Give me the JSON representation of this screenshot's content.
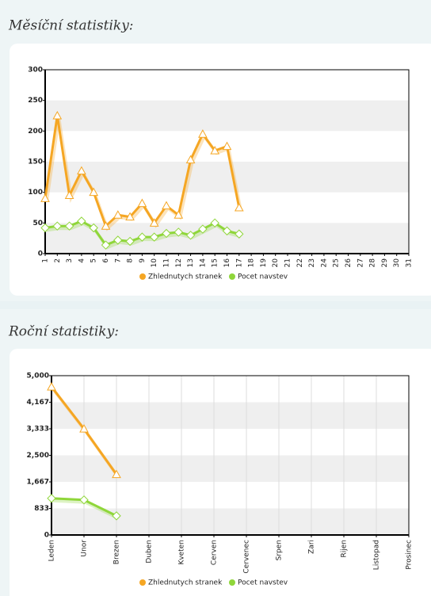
{
  "chart_data": [
    {
      "type": "line",
      "title": "Měsíční statistiky:",
      "categories": [
        "1",
        "2",
        "3",
        "4",
        "5",
        "6",
        "7",
        "8",
        "9",
        "10",
        "11",
        "12",
        "13",
        "14",
        "15",
        "16",
        "17",
        "18",
        "19",
        "20",
        "21",
        "22",
        "23",
        "24",
        "25",
        "26",
        "27",
        "28",
        "29",
        "30",
        "31"
      ],
      "series": [
        {
          "name": "Zhlednutych stranek",
          "color": "#f5a623",
          "values": [
            90,
            225,
            95,
            135,
            100,
            45,
            63,
            60,
            82,
            50,
            78,
            63,
            153,
            195,
            168,
            175,
            75,
            null,
            null,
            null,
            null,
            null,
            null,
            null,
            null,
            null,
            null,
            null,
            null,
            null,
            null
          ]
        },
        {
          "name": "Pocet navstev",
          "color": "#8fd63a",
          "values": [
            42,
            45,
            45,
            53,
            42,
            14,
            22,
            20,
            27,
            27,
            33,
            35,
            30,
            40,
            50,
            37,
            32,
            null,
            null,
            null,
            null,
            null,
            null,
            null,
            null,
            null,
            null,
            null,
            null,
            null,
            null
          ]
        }
      ],
      "ylim": [
        0,
        300
      ],
      "yticks": [
        0,
        50,
        100,
        150,
        200,
        250,
        300
      ],
      "grid": true,
      "xgrid": false,
      "legend": "bottom"
    },
    {
      "type": "line",
      "title": "Roční statistiky:",
      "categories": [
        "Leden",
        "Unor",
        "Brezen",
        "Duben",
        "Kveten",
        "Cerven",
        "Cervenec",
        "Srpen",
        "Zari",
        "Rijen",
        "Listopad",
        "Prosinec"
      ],
      "series": [
        {
          "name": "Zhlednutych stranek",
          "color": "#f5a623",
          "values": [
            4650,
            3330,
            1900,
            null,
            null,
            null,
            null,
            null,
            null,
            null,
            null,
            null
          ]
        },
        {
          "name": "Pocet navstev",
          "color": "#8fd63a",
          "values": [
            1150,
            1100,
            600,
            null,
            null,
            null,
            null,
            null,
            null,
            null,
            null,
            null
          ]
        }
      ],
      "ylim": [
        0,
        5000
      ],
      "yticks": [
        0,
        833,
        {
          "value": 1667,
          "label": "1,667"
        },
        {
          "value": 2500,
          "label": "2,500"
        },
        {
          "value": 3333,
          "label": "3,333"
        },
        {
          "value": 4167,
          "label": "4,167"
        },
        {
          "value": 5000,
          "label": "5,000"
        }
      ],
      "grid": true,
      "xgrid": true,
      "legend": "bottom"
    }
  ]
}
